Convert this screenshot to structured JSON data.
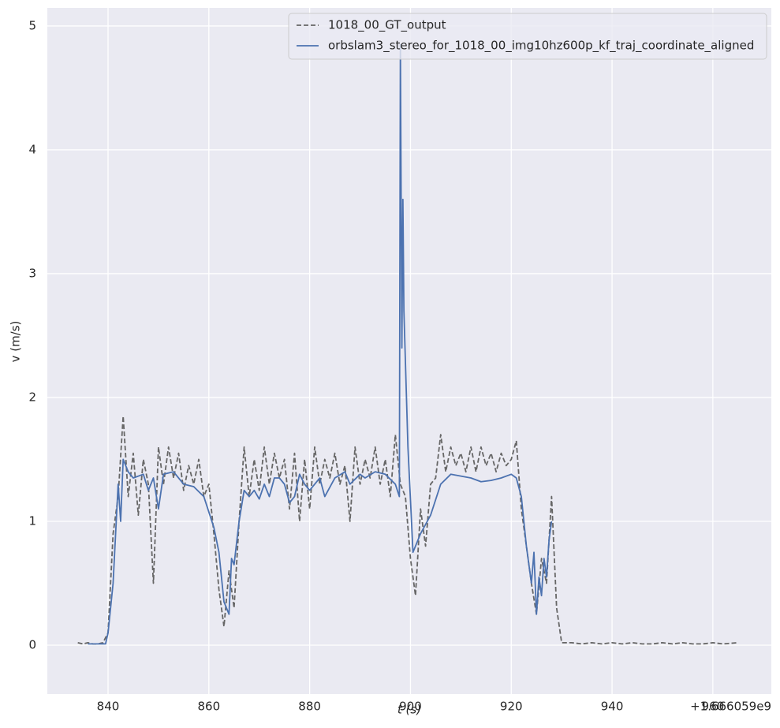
{
  "chart_data": {
    "type": "line",
    "xlabel": "t (s)",
    "ylabel": "v (m/s)",
    "x_offset_text": "+1.666059e9",
    "xlim": [
      827.95,
      971.6
    ],
    "xticks": [
      840,
      860,
      880,
      900,
      920,
      940,
      960
    ],
    "ylim": [
      -0.395,
      5.146
    ],
    "yticks": [
      0,
      1,
      2,
      3,
      4,
      5
    ],
    "grid": true,
    "legend": "upper right",
    "series": [
      {
        "name": "1018_00_GT_output",
        "color": "#666666",
        "dash": true,
        "x": [
          834,
          835,
          836,
          837,
          838,
          839,
          840,
          841,
          842,
          843,
          844,
          845,
          846,
          847,
          848,
          849,
          850,
          851,
          852,
          853,
          854,
          855,
          856,
          857,
          858,
          859,
          860,
          861,
          862,
          863,
          864,
          865,
          866,
          867,
          868,
          869,
          870,
          871,
          872,
          873,
          874,
          875,
          876,
          877,
          878,
          879,
          880,
          881,
          882,
          883,
          884,
          885,
          886,
          887,
          888,
          889,
          890,
          891,
          892,
          893,
          894,
          895,
          896,
          897,
          898,
          899,
          900,
          901,
          902,
          903,
          904,
          905,
          906,
          907,
          908,
          909,
          910,
          911,
          912,
          913,
          914,
          915,
          916,
          917,
          918,
          919,
          920,
          921,
          922,
          923,
          924,
          925,
          926,
          927,
          928,
          929,
          930,
          932,
          934,
          936,
          938,
          940,
          942,
          944,
          946,
          948,
          950,
          952,
          954,
          956,
          958,
          960,
          962,
          965
        ],
        "values": [
          0.02,
          0.01,
          0.02,
          0.01,
          0.01,
          0.02,
          0.1,
          0.9,
          1.2,
          1.85,
          1.2,
          1.55,
          1.05,
          1.5,
          1.3,
          0.5,
          1.6,
          1.3,
          1.6,
          1.35,
          1.55,
          1.25,
          1.45,
          1.3,
          1.5,
          1.2,
          1.3,
          0.9,
          0.45,
          0.15,
          0.6,
          0.3,
          1.0,
          1.6,
          1.2,
          1.5,
          1.25,
          1.6,
          1.3,
          1.55,
          1.35,
          1.5,
          1.1,
          1.55,
          1.0,
          1.5,
          1.1,
          1.6,
          1.3,
          1.5,
          1.35,
          1.55,
          1.3,
          1.45,
          1.0,
          1.6,
          1.3,
          1.5,
          1.35,
          1.6,
          1.3,
          1.5,
          1.2,
          1.7,
          1.3,
          1.2,
          0.7,
          0.4,
          1.1,
          0.8,
          1.3,
          1.35,
          1.7,
          1.4,
          1.6,
          1.45,
          1.55,
          1.4,
          1.6,
          1.4,
          1.6,
          1.45,
          1.55,
          1.4,
          1.55,
          1.45,
          1.5,
          1.65,
          1.1,
          0.8,
          0.5,
          0.25,
          0.7,
          0.5,
          1.2,
          0.3,
          0.02,
          0.02,
          0.01,
          0.02,
          0.01,
          0.02,
          0.01,
          0.02,
          0.01,
          0.01,
          0.02,
          0.01,
          0.02,
          0.01,
          0.01,
          0.02,
          0.01,
          0.02
        ]
      },
      {
        "name": "orbslam3_stereo_for_1018_00_img10hz600p_kf_traj_coordinate_aligned",
        "color": "#4c72b0",
        "dash": false,
        "x": [
          836,
          838,
          839.5,
          840,
          841,
          842,
          842.5,
          843,
          844,
          845,
          847,
          848,
          849,
          850,
          851,
          853,
          855,
          857,
          859,
          861,
          862,
          863,
          864,
          864.5,
          865,
          866,
          867,
          868,
          869,
          870,
          871,
          872,
          873,
          874,
          875,
          876,
          877,
          878,
          879,
          880,
          882,
          883,
          885,
          887,
          888,
          890,
          891,
          893,
          895,
          897,
          897.8,
          898,
          898.3,
          898.5,
          898.7,
          899.5,
          900.5,
          902,
          904,
          906,
          908,
          912,
          914,
          916,
          918,
          920,
          921,
          922,
          923,
          924,
          924.5,
          925,
          925.5,
          926,
          926.5,
          927,
          927.5,
          928
        ],
        "values": [
          0.01,
          0.01,
          0.01,
          0.1,
          0.5,
          1.3,
          1.0,
          1.5,
          1.4,
          1.35,
          1.38,
          1.25,
          1.35,
          1.1,
          1.38,
          1.4,
          1.3,
          1.28,
          1.2,
          0.95,
          0.75,
          0.35,
          0.25,
          0.7,
          0.65,
          1.0,
          1.25,
          1.2,
          1.25,
          1.18,
          1.3,
          1.2,
          1.35,
          1.35,
          1.3,
          1.15,
          1.2,
          1.38,
          1.3,
          1.25,
          1.35,
          1.2,
          1.35,
          1.4,
          1.3,
          1.38,
          1.35,
          1.4,
          1.38,
          1.3,
          1.2,
          4.85,
          2.4,
          3.6,
          2.7,
          1.6,
          0.75,
          0.9,
          1.05,
          1.3,
          1.38,
          1.35,
          1.32,
          1.33,
          1.35,
          1.38,
          1.35,
          1.2,
          0.8,
          0.5,
          0.75,
          0.25,
          0.55,
          0.4,
          0.7,
          0.55,
          0.85,
          1.0
        ]
      }
    ]
  }
}
